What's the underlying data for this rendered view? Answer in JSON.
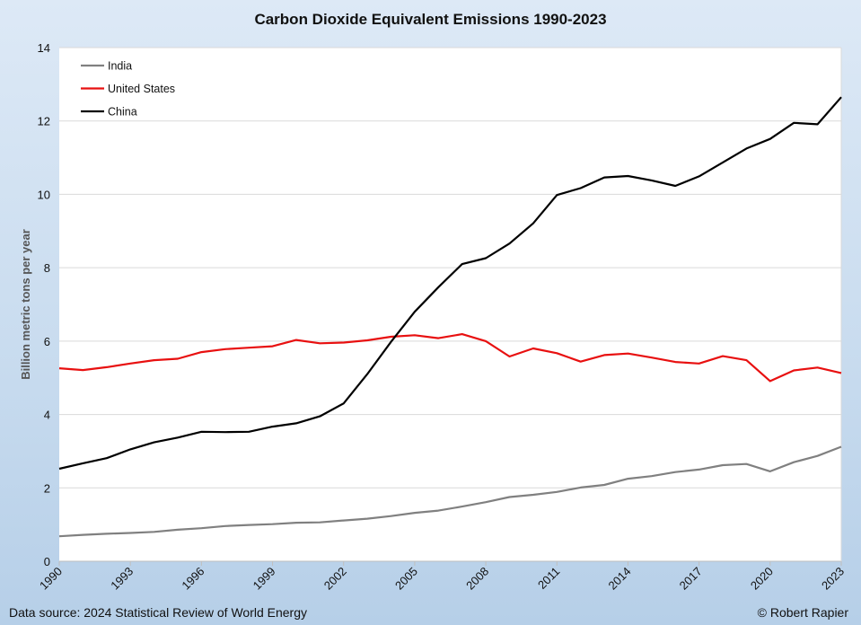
{
  "chart_data": {
    "type": "line",
    "title": "Carbon Dioxide Equivalent Emissions 1990-2023",
    "ylabel": "Billion metric tons per year",
    "xlabel": "",
    "ylim": [
      0,
      14
    ],
    "yticks": [
      "0",
      "2",
      "4",
      "6",
      "8",
      "10",
      "12",
      "14"
    ],
    "x": [
      1990,
      1991,
      1992,
      1993,
      1994,
      1995,
      1996,
      1997,
      1998,
      1999,
      2000,
      2001,
      2002,
      2003,
      2004,
      2005,
      2006,
      2007,
      2008,
      2009,
      2010,
      2011,
      2012,
      2013,
      2014,
      2015,
      2016,
      2017,
      2018,
      2019,
      2020,
      2021,
      2022,
      2023
    ],
    "xtick_labels": [
      "1990",
      "1993",
      "1996",
      "1999",
      "2002",
      "2005",
      "2008",
      "2011",
      "2014",
      "2017",
      "2020",
      "2023"
    ],
    "grid": "horizontal",
    "legend_position": "top-left",
    "series": [
      {
        "name": "India",
        "color": "#808080",
        "values": [
          0.68,
          0.72,
          0.75,
          0.77,
          0.8,
          0.86,
          0.9,
          0.96,
          0.99,
          1.01,
          1.05,
          1.06,
          1.11,
          1.16,
          1.23,
          1.32,
          1.38,
          1.49,
          1.61,
          1.75,
          1.81,
          1.89,
          2.01,
          2.08,
          2.25,
          2.32,
          2.43,
          2.5,
          2.62,
          2.65,
          2.45,
          2.7,
          2.87,
          3.12
        ]
      },
      {
        "name": "United States",
        "color": "#e81010",
        "values": [
          5.26,
          5.21,
          5.29,
          5.39,
          5.48,
          5.52,
          5.7,
          5.78,
          5.82,
          5.86,
          6.03,
          5.94,
          5.96,
          6.02,
          6.12,
          6.16,
          6.08,
          6.19,
          6.0,
          5.58,
          5.8,
          5.67,
          5.44,
          5.62,
          5.66,
          5.55,
          5.43,
          5.39,
          5.59,
          5.48,
          4.91,
          5.2,
          5.28,
          5.13
        ]
      },
      {
        "name": "China",
        "color": "#000000",
        "values": [
          2.52,
          2.67,
          2.81,
          3.05,
          3.24,
          3.37,
          3.53,
          3.52,
          3.53,
          3.67,
          3.76,
          3.95,
          4.3,
          5.1,
          5.98,
          6.8,
          7.47,
          8.1,
          8.26,
          8.66,
          9.21,
          9.98,
          10.17,
          10.46,
          10.5,
          10.38,
          10.23,
          10.49,
          10.87,
          11.25,
          11.51,
          11.95,
          11.91,
          12.65
        ]
      }
    ]
  },
  "footer": {
    "source": "Data source: 2024 Statistical Review of World Energy",
    "credit": "© Robert Rapier"
  }
}
